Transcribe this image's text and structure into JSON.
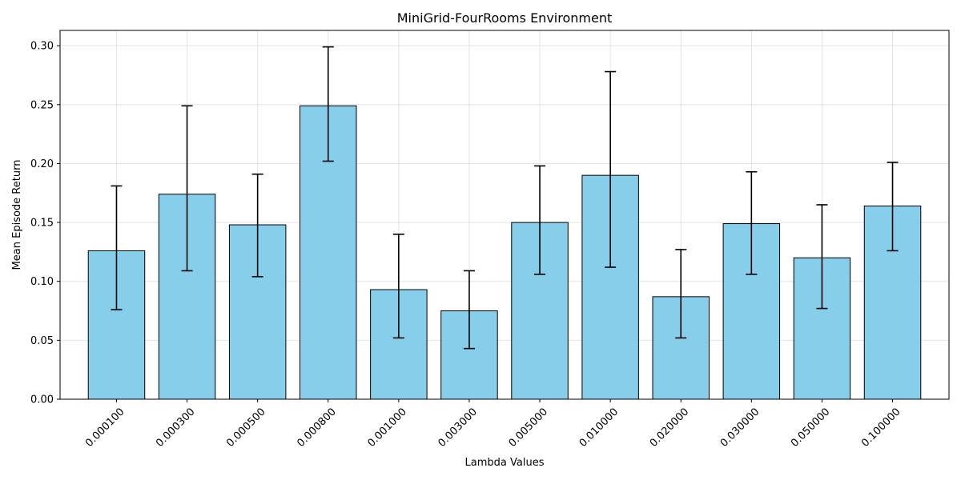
{
  "colors": {
    "bar_fill": "#87CEEB",
    "bar_edge": "#000000",
    "error_bar": "#000000",
    "grid": "#e3e3e3"
  },
  "chart_data": {
    "type": "bar",
    "title": "MiniGrid-FourRooms Environment",
    "xlabel": "Lambda Values",
    "ylabel": "Mean Episode Return",
    "categories": [
      "0.000100",
      "0.000300",
      "0.000500",
      "0.000800",
      "0.001000",
      "0.003000",
      "0.005000",
      "0.010000",
      "0.020000",
      "0.030000",
      "0.050000",
      "0.100000"
    ],
    "values": [
      0.126,
      0.174,
      0.148,
      0.249,
      0.093,
      0.075,
      0.15,
      0.19,
      0.087,
      0.149,
      0.12,
      0.164
    ],
    "error_low": [
      0.076,
      0.109,
      0.104,
      0.202,
      0.052,
      0.043,
      0.106,
      0.112,
      0.052,
      0.106,
      0.077,
      0.126
    ],
    "error_high": [
      0.181,
      0.249,
      0.191,
      0.299,
      0.14,
      0.109,
      0.198,
      0.278,
      0.127,
      0.193,
      0.165,
      0.201
    ],
    "ylim": [
      0,
      0.313
    ],
    "yticks": [
      "0.00",
      "0.05",
      "0.10",
      "0.15",
      "0.20",
      "0.25",
      "0.30"
    ],
    "grid": true,
    "x_tick_rotation_deg": 45
  }
}
